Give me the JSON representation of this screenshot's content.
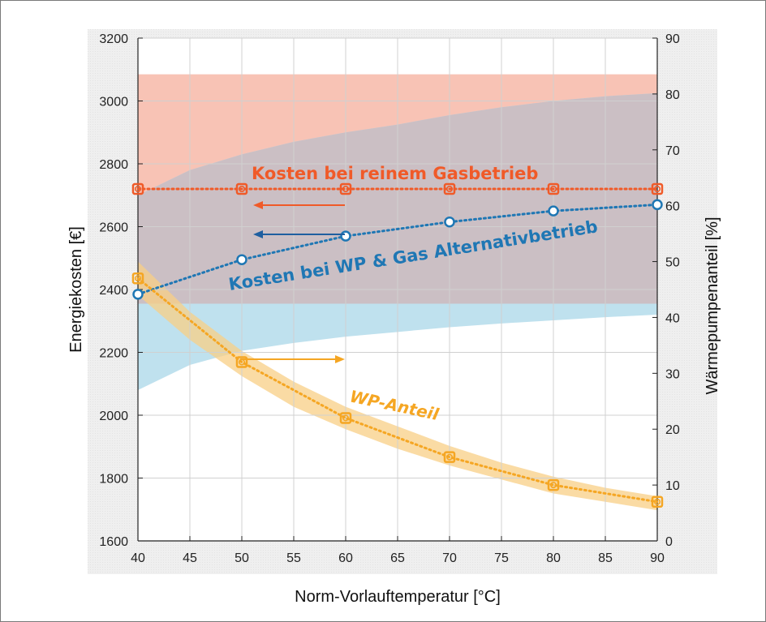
{
  "chart_data": {
    "type": "line",
    "xlabel": "Norm-Vorlauftemperatur [°C]",
    "ylabel": "Energiekosten [€]",
    "ylabel_right": "Wärmepumpenanteil [%]",
    "xlim": [
      40,
      90
    ],
    "ylim": [
      1600,
      3200
    ],
    "ylim_right": [
      0,
      90
    ],
    "xticks": [
      "40",
      "45",
      "50",
      "55",
      "60",
      "65",
      "70",
      "75",
      "80",
      "85",
      "90"
    ],
    "yticks": [
      "1600",
      "1800",
      "2000",
      "2200",
      "2400",
      "2600",
      "2800",
      "3000",
      "3200"
    ],
    "yticks_right": [
      "0",
      "10",
      "20",
      "30",
      "40",
      "50",
      "60",
      "70",
      "80",
      "90"
    ],
    "grid": true,
    "x": [
      40,
      50,
      60,
      70,
      80,
      90
    ],
    "series": [
      {
        "label": "Kosten bei reinem Gasbetrieb",
        "axis": "left",
        "color": "#f05a28",
        "values": [
          2720,
          2720,
          2720,
          2720,
          2720,
          2720
        ],
        "band": {
          "x": [
            40,
            90
          ],
          "lower": [
            2355,
            2355
          ],
          "upper": [
            3085,
            3085
          ]
        }
      },
      {
        "label": "Kosten bei WP & Gas Alternativbetrieb",
        "axis": "left",
        "color": "#1f77b4",
        "values": [
          2385,
          2495,
          2570,
          2615,
          2650,
          2670
        ],
        "band": {
          "x": [
            40,
            45,
            50,
            55,
            60,
            65,
            70,
            75,
            80,
            85,
            90
          ],
          "lower": [
            2080,
            2160,
            2205,
            2230,
            2250,
            2265,
            2280,
            2292,
            2302,
            2312,
            2320
          ],
          "upper": [
            2700,
            2780,
            2830,
            2870,
            2900,
            2925,
            2955,
            2980,
            3000,
            3015,
            3025
          ]
        }
      },
      {
        "label": "WP-Anteil",
        "axis": "right",
        "color": "#f5a623",
        "values": [
          47,
          32,
          22,
          15,
          10,
          7
        ],
        "band": {
          "x": [
            40,
            45,
            50,
            55,
            60,
            65,
            70,
            75,
            80,
            85,
            90
          ],
          "lower": [
            44,
            36,
            29.5,
            24,
            20,
            16.5,
            13.5,
            11,
            8.5,
            7,
            5.5
          ],
          "upper": [
            50,
            41,
            34,
            28.5,
            24,
            20.5,
            17,
            14,
            11.5,
            9.5,
            8
          ]
        }
      }
    ],
    "colors": {
      "gas_band": "#f8c3b5",
      "wp_band": "#bfe1ee",
      "overlap_band": "#cbbfc4",
      "plot_bg": "#ececec"
    }
  }
}
